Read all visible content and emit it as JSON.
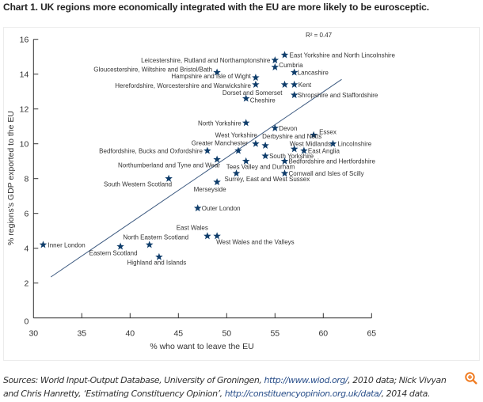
{
  "title": "Chart 1. UK regions more economically integrated with the EU are more likely to be eurosceptic.",
  "sources": {
    "prefix": "Sources: World Input-Output Database, University of Groningen, ",
    "link1": "http://www.wiod.org/",
    "mid": ", 2010 data; Nick Vivyan and Chris Hanretty, ‘Estimating Constituency Opinion’, ",
    "link2": "http://constituencyopinion.org.uk/data/",
    "suffix": ", 2014 data."
  },
  "colors": {
    "marker": "#0f3d6b",
    "trend": "#3d5a80",
    "zoom_icon": "#f07c22"
  },
  "chart_data": {
    "type": "scatter",
    "title": "Chart 1. UK regions more economically integrated with the EU are more likely to be eurosceptic.",
    "xlabel": "% who want to leave the EU",
    "ylabel": "% regions's GDP exported to the EU",
    "xlim": [
      30,
      65
    ],
    "ylim": [
      0,
      16
    ],
    "xticks": [
      30,
      35,
      40,
      45,
      50,
      55,
      60,
      65
    ],
    "yticks": [
      0,
      2,
      4,
      6,
      8,
      10,
      12,
      14,
      16
    ],
    "grid": false,
    "annotation": "R² = 0.47",
    "trendline": {
      "x": [
        31.8,
        61.9
      ],
      "y": [
        2.35,
        13.7
      ]
    },
    "points": [
      {
        "label": "East Yorkshire and North Lincolnshire",
        "x": 56,
        "y": 15.1
      },
      {
        "label": "Leicestershire, Rutland and Northamptonshire",
        "x": 55,
        "y": 14.8
      },
      {
        "label": "Cumbria",
        "x": 55,
        "y": 14.4
      },
      {
        "label": "Gloucestershire, Wiltshire and Bristol/Bath",
        "x": 49,
        "y": 14.1
      },
      {
        "label": "Lancashire",
        "x": 57,
        "y": 14.1
      },
      {
        "label": "Hampshire and Isle of Wight",
        "x": 53,
        "y": 13.8
      },
      {
        "label": "Herefordshire, Worcestershire and Warwickshire",
        "x": 53,
        "y": 13.4
      },
      {
        "label": "Dorset and Somerset",
        "x": 56,
        "y": 13.4
      },
      {
        "label": "Kent",
        "x": 57,
        "y": 13.4
      },
      {
        "label": "Shropshire and Staffordshire",
        "x": 57,
        "y": 12.8
      },
      {
        "label": "Cheshire",
        "x": 52,
        "y": 12.6
      },
      {
        "label": "North Yorkshire",
        "x": 52,
        "y": 11.2
      },
      {
        "label": "Devon",
        "x": 55,
        "y": 10.9
      },
      {
        "label": "Essex",
        "x": 59,
        "y": 10.5
      },
      {
        "label": "West Yorkshire",
        "x": 53,
        "y": 10.0
      },
      {
        "label": "Derbyshire and Notts",
        "x": 54,
        "y": 9.9
      },
      {
        "label": "West Midlands",
        "x": 57,
        "y": 9.7
      },
      {
        "label": "Lincolnshire",
        "x": 61,
        "y": 10.0
      },
      {
        "label": "East Anglia",
        "x": 58,
        "y": 9.6
      },
      {
        "label": "Greater Manchester",
        "x": 51.2,
        "y": 9.6
      },
      {
        "label": "Bedfordshire, Bucks and Oxfordshire",
        "x": 48,
        "y": 9.6
      },
      {
        "label": "South Yorkshire",
        "x": 54,
        "y": 9.3
      },
      {
        "label": "Northumberland and Tyne and Wear",
        "x": 49,
        "y": 9.1
      },
      {
        "label": "Tees Valley and Durham",
        "x": 52,
        "y": 9.0
      },
      {
        "label": "Bedfordshire and Hertfordshire",
        "x": 56,
        "y": 9.0
      },
      {
        "label": "Cornwall and Isles of Scilly",
        "x": 56,
        "y": 8.3
      },
      {
        "label": "Surrey, East and West Sussex",
        "x": 51,
        "y": 8.3
      },
      {
        "label": "South Western Scotland",
        "x": 44,
        "y": 8.0
      },
      {
        "label": "Merseyside",
        "x": 49,
        "y": 7.8
      },
      {
        "label": "Outer London",
        "x": 47,
        "y": 6.3
      },
      {
        "label": "East Wales",
        "x": 48,
        "y": 4.7
      },
      {
        "label": "West Wales and the Valleys",
        "x": 49,
        "y": 4.7
      },
      {
        "label": "North Eastern Scotland",
        "x": 42,
        "y": 4.2
      },
      {
        "label": "Eastern Scotland",
        "x": 39,
        "y": 4.1
      },
      {
        "label": "Highland and Islands",
        "x": 43,
        "y": 3.5
      },
      {
        "label": "Inner London",
        "x": 31,
        "y": 4.2
      }
    ]
  }
}
